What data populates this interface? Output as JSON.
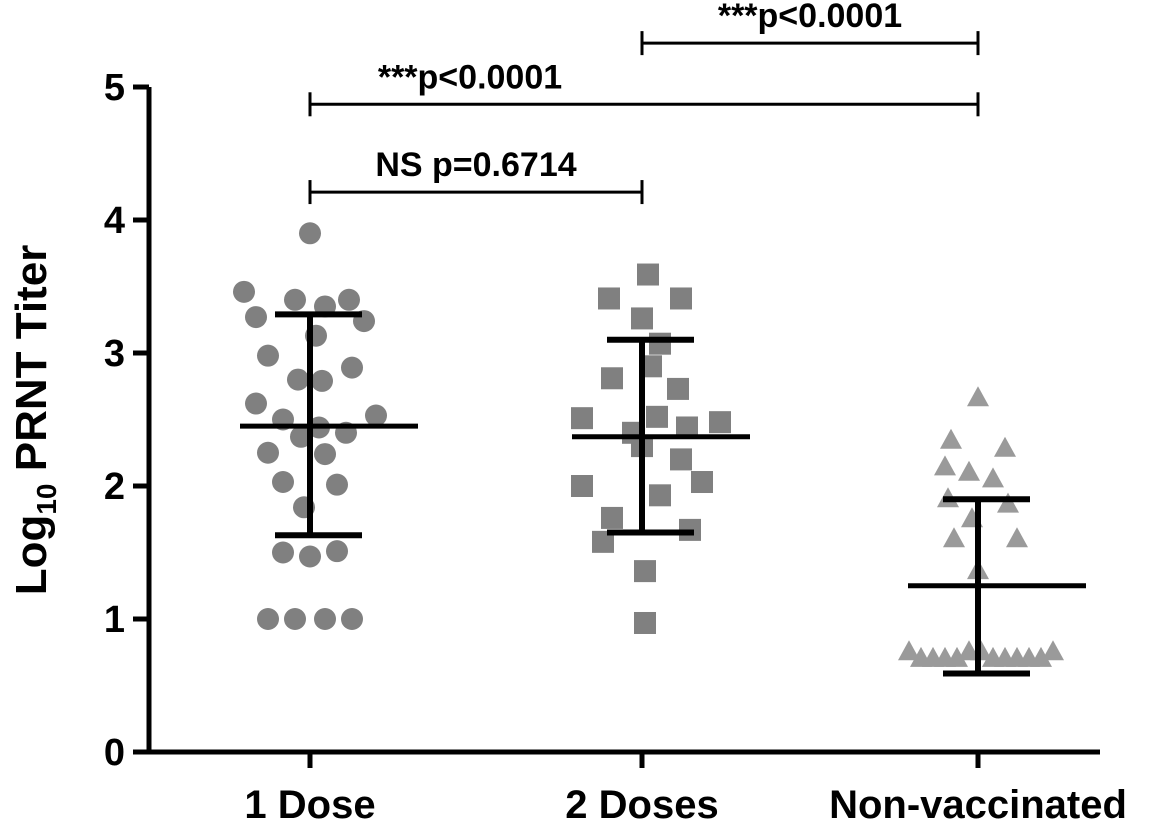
{
  "chart_data": {
    "type": "scatter",
    "subtype": "dot-plot-with-mean-and-sd",
    "title": "",
    "xlabel": "",
    "ylabel": {
      "prefix": "Log",
      "subscript": "10",
      "suffix": " PRNT Titer"
    },
    "ylim": [
      0,
      5
    ],
    "yticks": [
      "0",
      "1",
      "2",
      "3",
      "4",
      "5"
    ],
    "grid": false,
    "categories": [
      "1 Dose",
      "2 Doses",
      "Non-vaccinated"
    ],
    "series": [
      {
        "category": "1 Dose",
        "marker": "circle",
        "color": "#808080",
        "mean": 2.45,
        "sd_lower": 1.63,
        "sd_upper": 3.29,
        "points": [
          [
            0,
            3.9
          ],
          [
            -0.22,
            3.46
          ],
          [
            -0.05,
            3.4
          ],
          [
            0.05,
            3.35
          ],
          [
            0.13,
            3.4
          ],
          [
            -0.18,
            3.27
          ],
          [
            0.18,
            3.24
          ],
          [
            0.02,
            3.13
          ],
          [
            -0.14,
            2.98
          ],
          [
            0.14,
            2.89
          ],
          [
            -0.04,
            2.8
          ],
          [
            0.04,
            2.79
          ],
          [
            -0.18,
            2.62
          ],
          [
            0.22,
            2.53
          ],
          [
            -0.09,
            2.5
          ],
          [
            0.12,
            2.4
          ],
          [
            0.03,
            2.44
          ],
          [
            -0.03,
            2.37
          ],
          [
            -0.14,
            2.25
          ],
          [
            0.05,
            2.24
          ],
          [
            -0.09,
            2.03
          ],
          [
            0.09,
            2.01
          ],
          [
            -0.02,
            1.84
          ],
          [
            -0.09,
            1.5
          ],
          [
            0.09,
            1.51
          ],
          [
            0,
            1.47
          ],
          [
            -0.14,
            1.0
          ],
          [
            -0.05,
            1.0
          ],
          [
            0.05,
            1.0
          ],
          [
            0.14,
            1.0
          ]
        ]
      },
      {
        "category": "2 Doses",
        "marker": "square",
        "color": "#808080",
        "mean": 2.37,
        "sd_lower": 1.65,
        "sd_upper": 3.1,
        "points": [
          [
            0.02,
            3.59
          ],
          [
            -0.11,
            3.41
          ],
          [
            0.13,
            3.41
          ],
          [
            0.0,
            3.26
          ],
          [
            0.06,
            3.07
          ],
          [
            -0.1,
            2.81
          ],
          [
            0.03,
            2.9
          ],
          [
            0.12,
            2.73
          ],
          [
            -0.2,
            2.51
          ],
          [
            0.26,
            2.48
          ],
          [
            0.05,
            2.52
          ],
          [
            0.15,
            2.44
          ],
          [
            -0.03,
            2.4
          ],
          [
            0.0,
            2.3
          ],
          [
            0.13,
            2.2
          ],
          [
            0.2,
            2.03
          ],
          [
            -0.2,
            2.0
          ],
          [
            0.06,
            1.93
          ],
          [
            -0.1,
            1.76
          ],
          [
            0.16,
            1.67
          ],
          [
            -0.13,
            1.58
          ],
          [
            0.01,
            1.36
          ],
          [
            0.01,
            0.97
          ]
        ]
      },
      {
        "category": "Non-vaccinated",
        "marker": "triangle",
        "color": "#9a9a9a",
        "mean": 1.25,
        "sd_lower": 0.59,
        "sd_upper": 1.9,
        "points": [
          [
            0.0,
            2.66
          ],
          [
            -0.09,
            2.34
          ],
          [
            0.09,
            2.28
          ],
          [
            -0.11,
            2.14
          ],
          [
            -0.03,
            2.1
          ],
          [
            0.05,
            2.05
          ],
          [
            -0.1,
            1.9
          ],
          [
            0.1,
            1.86
          ],
          [
            -0.02,
            1.75
          ],
          [
            -0.08,
            1.6
          ],
          [
            0.13,
            1.6
          ],
          [
            0.0,
            1.36
          ],
          [
            -0.23,
            0.75
          ],
          [
            -0.19,
            0.7
          ],
          [
            -0.15,
            0.7
          ],
          [
            -0.11,
            0.7
          ],
          [
            -0.07,
            0.7
          ],
          [
            -0.03,
            0.75
          ],
          [
            0.01,
            0.75
          ],
          [
            0.05,
            0.7
          ],
          [
            0.09,
            0.7
          ],
          [
            0.13,
            0.7
          ],
          [
            0.17,
            0.7
          ],
          [
            0.21,
            0.7
          ],
          [
            0.25,
            0.75
          ]
        ]
      }
    ],
    "annotations": [
      {
        "label": "NS p=0.6714",
        "from": "1 Dose",
        "to": "2 Doses",
        "level": 4.21
      },
      {
        "label": "***p<0.0001",
        "from": "1 Dose",
        "to": "Non-vaccinated",
        "level": 4.87
      },
      {
        "label": "***p<0.0001",
        "from": "2 Doses",
        "to": "Non-vaccinated",
        "level": 5.33
      }
    ]
  }
}
